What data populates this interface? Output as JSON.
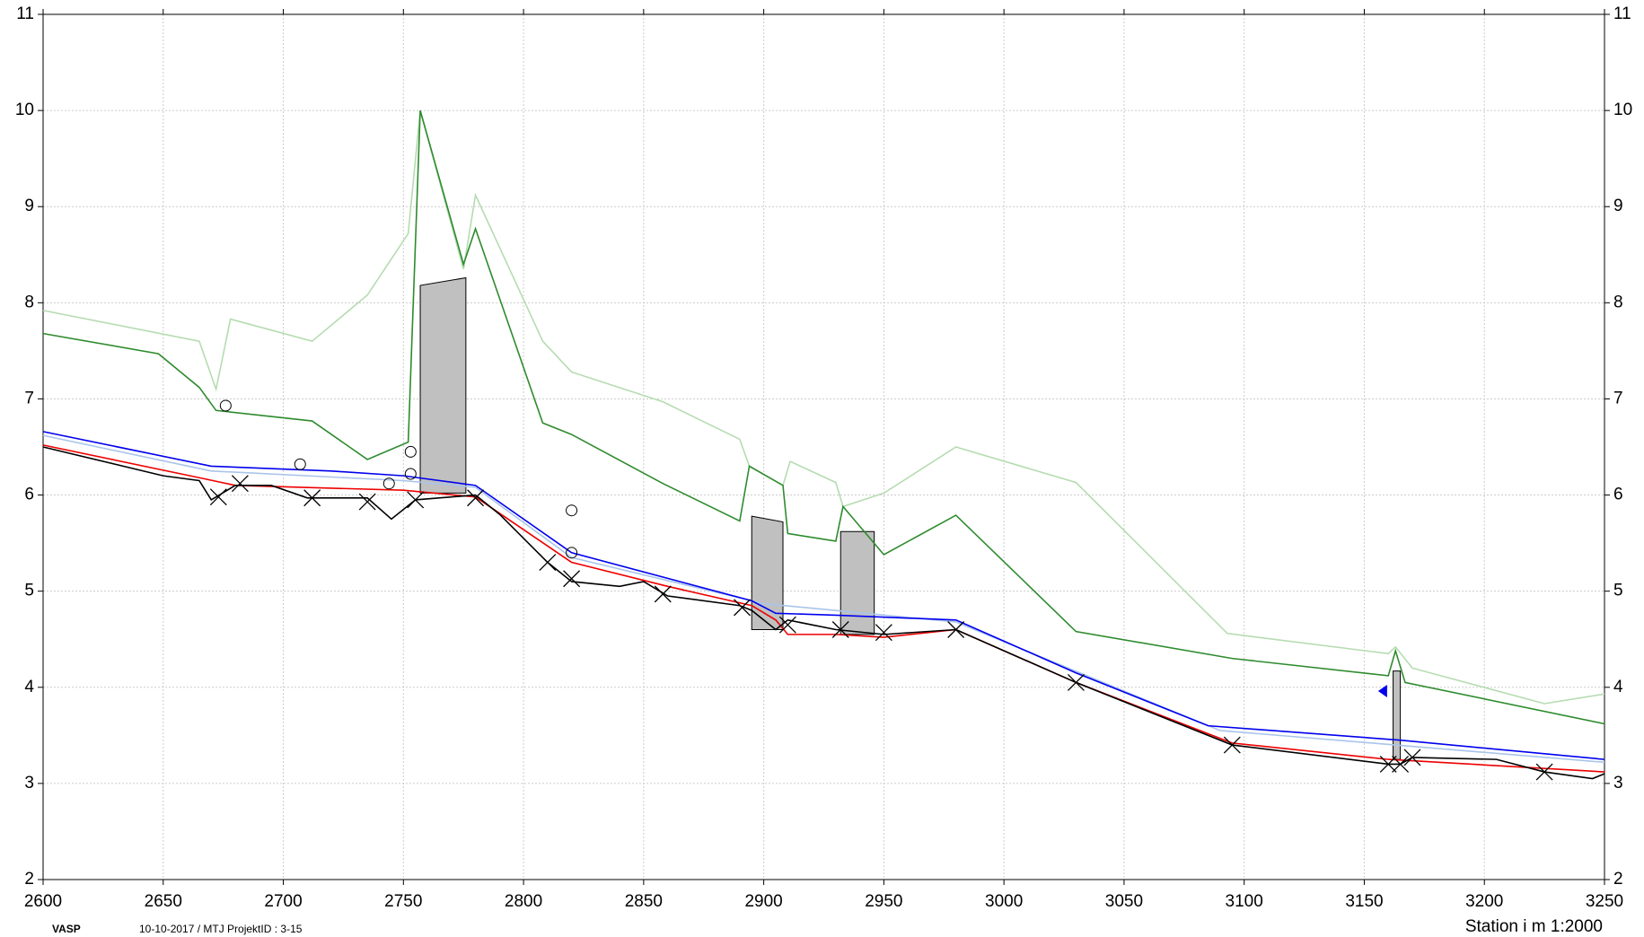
{
  "chart_data": {
    "type": "line",
    "xlim": [
      2600,
      3250
    ],
    "ylim": [
      2,
      11
    ],
    "xticks": [
      2600,
      2650,
      2700,
      2750,
      2800,
      2850,
      2900,
      2950,
      3000,
      3050,
      3100,
      3150,
      3200,
      3250
    ],
    "yticks": [
      2,
      3,
      4,
      5,
      6,
      7,
      8,
      9,
      10,
      11
    ],
    "grid": true,
    "x_label": "Station i m  1:2000",
    "footer_left": "VASP",
    "footer_info": "10-10-2017 / MTJ   ProjektID : 3-15",
    "series": [
      {
        "color": "#b5dcb0",
        "x": [
          2600,
          2665,
          2672,
          2678,
          2712,
          2735,
          2752,
          2757,
          2775,
          2780,
          2808,
          2820,
          2858,
          2890,
          2894,
          2908,
          2911,
          2930,
          2933,
          2950,
          2980,
          3030,
          3093,
          3160,
          3163,
          3170,
          3225,
          3250
        ],
        "values": [
          7.92,
          7.6,
          7.1,
          7.83,
          7.6,
          8.08,
          8.72,
          10.0,
          8.35,
          9.12,
          7.6,
          7.28,
          6.97,
          6.58,
          6.3,
          6.1,
          6.35,
          6.13,
          5.88,
          6.02,
          6.5,
          6.13,
          4.56,
          4.35,
          4.42,
          4.2,
          3.83,
          3.93
        ]
      },
      {
        "color": "#2e8b2e",
        "x": [
          2600,
          2648,
          2665,
          2672,
          2712,
          2735,
          2752,
          2757,
          2775,
          2780,
          2808,
          2820,
          2858,
          2890,
          2894,
          2908,
          2910,
          2930,
          2933,
          2950,
          2980,
          3030,
          3095,
          3160,
          3163,
          3167,
          3250
        ],
        "values": [
          7.68,
          7.47,
          7.12,
          6.88,
          6.77,
          6.37,
          6.55,
          10.0,
          8.4,
          8.77,
          6.75,
          6.63,
          6.12,
          5.73,
          6.3,
          6.1,
          5.6,
          5.52,
          5.88,
          5.38,
          5.79,
          4.58,
          4.3,
          4.12,
          4.38,
          4.05,
          3.62
        ]
      },
      {
        "color": "#a9c4ea",
        "x": [
          2600,
          2670,
          2750,
          2780,
          2820,
          2900,
          2980,
          3090,
          3250
        ],
        "values": [
          6.62,
          6.25,
          6.15,
          6.08,
          5.35,
          4.87,
          4.68,
          3.55,
          3.22
        ]
      },
      {
        "color": "#0000ee",
        "x": [
          2600,
          2670,
          2720,
          2750,
          2780,
          2820,
          2895,
          2905,
          2930,
          2980,
          3030,
          3085,
          3165,
          3250
        ],
        "values": [
          6.66,
          6.3,
          6.25,
          6.2,
          6.1,
          5.4,
          4.9,
          4.77,
          4.75,
          4.7,
          4.15,
          3.6,
          3.45,
          3.25
        ]
      },
      {
        "color": "#ee0000",
        "x": [
          2600,
          2665,
          2680,
          2750,
          2780,
          2820,
          2860,
          2895,
          2905,
          2910,
          2930,
          2950,
          2980,
          3030,
          3095,
          3160,
          3250
        ],
        "values": [
          6.52,
          6.18,
          6.1,
          6.05,
          5.98,
          5.3,
          5.05,
          4.85,
          4.7,
          4.55,
          4.55,
          4.52,
          4.6,
          4.05,
          3.42,
          3.25,
          3.12
        ]
      },
      {
        "color": "#000000",
        "x": [
          2600,
          2650,
          2665,
          2670,
          2680,
          2695,
          2710,
          2735,
          2745,
          2755,
          2780,
          2790,
          2810,
          2820,
          2840,
          2850,
          2860,
          2890,
          2895,
          2905,
          2910,
          2930,
          2950,
          2980,
          3030,
          3095,
          3160,
          3165,
          3170,
          3205,
          3225,
          3245,
          3250
        ],
        "values": [
          6.5,
          6.2,
          6.15,
          5.95,
          6.1,
          6.1,
          5.97,
          5.97,
          5.75,
          5.95,
          6.0,
          5.8,
          5.3,
          5.1,
          5.05,
          5.1,
          4.95,
          4.85,
          4.8,
          4.6,
          4.7,
          4.6,
          4.55,
          4.6,
          4.05,
          3.4,
          3.2,
          3.2,
          3.27,
          3.25,
          3.12,
          3.05,
          3.1
        ]
      }
    ],
    "structures": [
      {
        "x": [
          2757,
          2776
        ],
        "top": [
          8.18,
          8.26
        ],
        "bottom": 6.02
      },
      {
        "x": [
          2895,
          2908
        ],
        "top": [
          5.78,
          5.72
        ],
        "bottom": 4.6
      },
      {
        "x": [
          2932,
          2946
        ],
        "top": [
          5.62,
          5.62
        ],
        "bottom": 4.55
      },
      {
        "x": [
          3162,
          3165
        ],
        "top": [
          4.17,
          4.17
        ],
        "bottom": 3.25
      }
    ],
    "crosses": {
      "x": [
        2673,
        2682,
        2712,
        2735,
        2755,
        2780,
        2810,
        2820,
        2858,
        2891,
        2910,
        2932,
        2950,
        2980,
        3030,
        3095,
        3160,
        3165,
        3170,
        3225
      ],
      "values": [
        5.98,
        6.12,
        5.97,
        5.93,
        5.95,
        5.97,
        5.3,
        5.13,
        4.97,
        4.83,
        4.65,
        4.6,
        4.57,
        4.6,
        4.05,
        3.4,
        3.2,
        3.2,
        3.27,
        3.12
      ]
    },
    "circles": {
      "x": [
        2676,
        2707,
        2744,
        2753,
        2753,
        2820,
        2820
      ],
      "values": [
        6.93,
        6.32,
        6.12,
        6.45,
        6.22,
        5.84,
        5.4
      ]
    },
    "triangles": {
      "x": [
        3158
      ],
      "values": [
        3.96
      ]
    }
  }
}
